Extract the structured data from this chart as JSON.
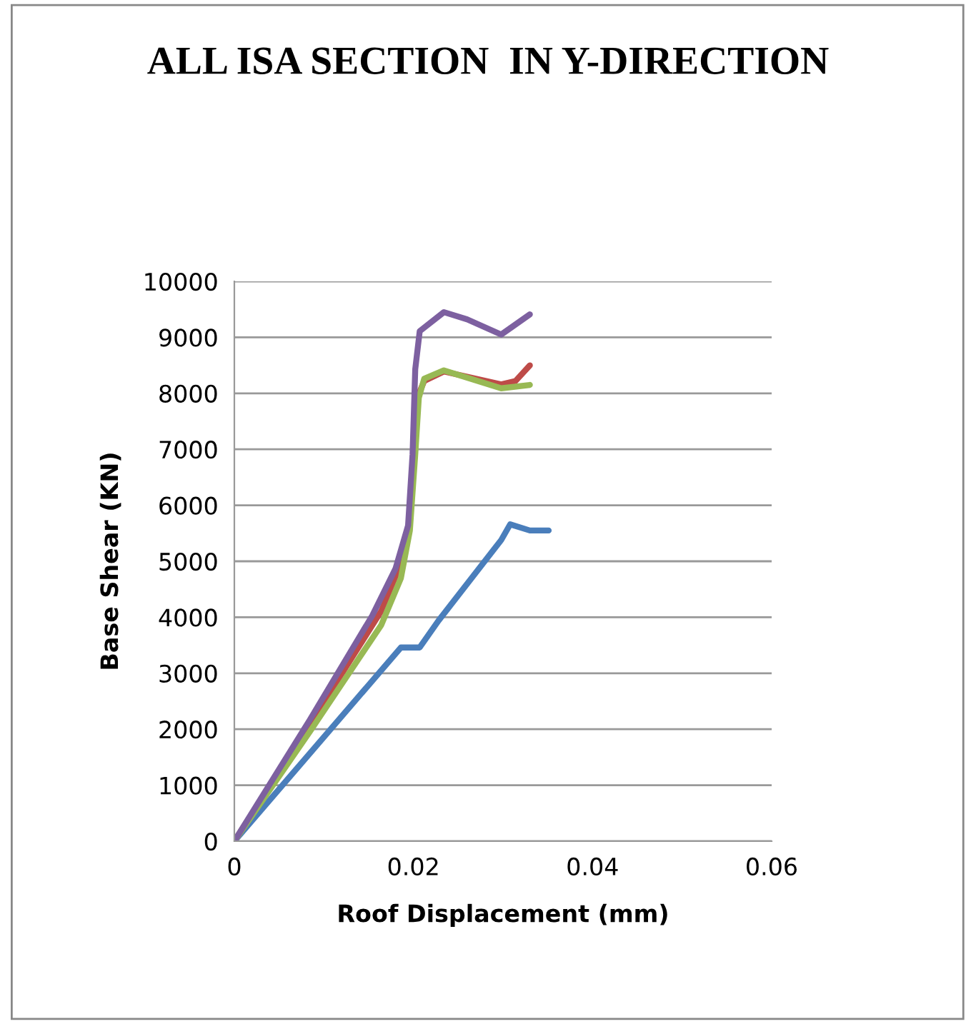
{
  "chart_data": {
    "type": "line",
    "title": "ALL ISA SECTION  IN Y-DIRECTION",
    "xlabel": "Roof Displacement (mm)",
    "ylabel": "Base Shear (KN)",
    "xlim": [
      0,
      0.06
    ],
    "xticks": [
      0,
      0.02,
      0.04,
      0.06
    ],
    "ylim": [
      0,
      10000
    ],
    "yticks": [
      0,
      1000,
      2000,
      3000,
      4000,
      5000,
      6000,
      7000,
      8000,
      9000,
      10000
    ],
    "grid": "y",
    "marker": "none",
    "line_style": "solid",
    "series": [
      {
        "color": "#4a7ebb",
        "x": [
          0,
          0.0186,
          0.0207,
          0.0228,
          0.0298,
          0.0308,
          0.033,
          0.0351
        ],
        "values": [
          0,
          3460,
          3460,
          3940,
          5380,
          5660,
          5550,
          5550
        ]
      },
      {
        "color": "#be4b48",
        "x": [
          0,
          0.0084,
          0.0164,
          0.0186,
          0.0196,
          0.02,
          0.0204,
          0.0212,
          0.0234,
          0.0298,
          0.0314,
          0.033
        ],
        "values": [
          0,
          2080,
          4110,
          4960,
          5720,
          6910,
          7920,
          8220,
          8390,
          8160,
          8220,
          8500
        ]
      },
      {
        "color": "#98b954",
        "x": [
          0,
          0.0084,
          0.0164,
          0.0186,
          0.0196,
          0.0202,
          0.0206,
          0.0212,
          0.0234,
          0.0298,
          0.033
        ],
        "values": [
          0,
          1950,
          3860,
          4700,
          5550,
          6910,
          7920,
          8260,
          8410,
          8090,
          8150
        ]
      },
      {
        "color": "#7d60a0",
        "x": [
          0,
          0.0084,
          0.0154,
          0.018,
          0.0194,
          0.0199,
          0.0202,
          0.0207,
          0.0234,
          0.026,
          0.0298,
          0.033
        ],
        "values": [
          0,
          2160,
          4030,
          4870,
          5640,
          6910,
          8430,
          9110,
          9450,
          9320,
          9050,
          9410
        ]
      }
    ]
  }
}
